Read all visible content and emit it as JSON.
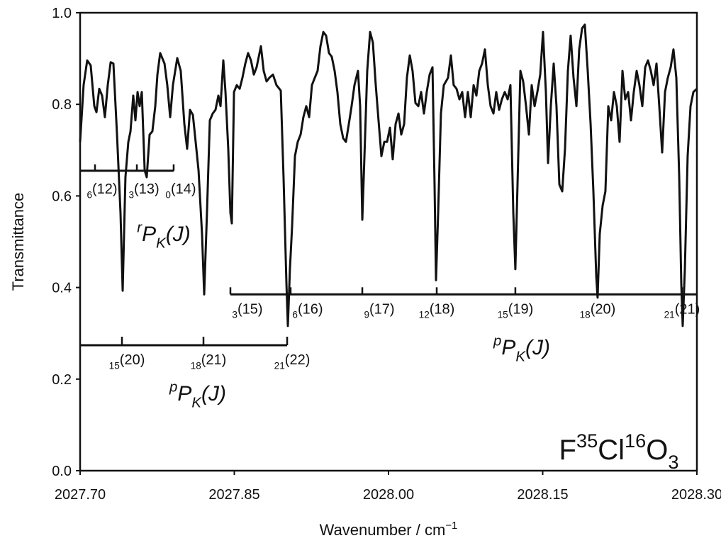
{
  "chart_data": {
    "type": "line",
    "color": "#111111",
    "xlabel": [
      {
        "text": "Wavenumber / cm"
      },
      {
        "text": "−1",
        "shift": "sup"
      }
    ],
    "ylabel": [
      {
        "text": "Transmittance"
      }
    ],
    "formula": [
      {
        "text": "F"
      },
      {
        "text": "35",
        "shift": "sup"
      },
      {
        "text": "Cl"
      },
      {
        "text": "16",
        "shift": "sup"
      },
      {
        "text": "O"
      },
      {
        "text": "3",
        "shift": "sub"
      }
    ],
    "xlim": [
      2027.7,
      2028.3
    ],
    "ylim": [
      0,
      1
    ],
    "xticks": [
      {
        "value": 2027.7,
        "label": "2027.70"
      },
      {
        "value": 2027.85,
        "label": "2027.85"
      },
      {
        "value": 2028.0,
        "label": "2028.00"
      },
      {
        "value": 2028.15,
        "label": "2028.15"
      },
      {
        "value": 2028.3,
        "label": "2028.30"
      }
    ],
    "yticks": [
      {
        "value": 0,
        "label": "0.0"
      },
      0.2,
      0.4,
      0.6,
      0.8,
      {
        "value": 1,
        "label": "1.0"
      }
    ],
    "x": [
      2027.7,
      2027.7034,
      2027.7069,
      2027.7103,
      2027.7138,
      2027.7159,
      2027.7186,
      2027.7214,
      2027.7241,
      2027.7269,
      2027.7297,
      2027.7324,
      2027.7359,
      2027.7393,
      2027.7414,
      2027.7441,
      2027.7469,
      2027.749,
      2027.7517,
      2027.7538,
      2027.7559,
      2027.7579,
      2027.76,
      2027.7628,
      2027.7648,
      2027.7676,
      2027.7703,
      2027.7731,
      2027.7752,
      2027.7779,
      2027.7821,
      2027.7848,
      2027.7876,
      2027.7903,
      2027.7945,
      2027.7979,
      2027.8014,
      2027.8041,
      2027.8069,
      2027.8097,
      2027.8124,
      2027.8152,
      2027.8186,
      2027.8207,
      2027.8234,
      2027.8262,
      2027.829,
      2027.8317,
      2027.8345,
      2027.8366,
      2027.8393,
      2027.8414,
      2027.8441,
      2027.8462,
      2027.8476,
      2027.8497,
      2027.8524,
      2027.8552,
      2027.8579,
      2027.8607,
      2027.8634,
      2027.8662,
      2027.869,
      2027.8717,
      2027.8759,
      2027.8786,
      2027.8814,
      2027.8841,
      2027.8876,
      2027.891,
      2027.8952,
      2027.8979,
      2027.9007,
      2027.9021,
      2027.9041,
      2027.9062,
      2027.909,
      2027.9117,
      2027.9145,
      2027.9172,
      2027.92,
      2027.9228,
      2027.9255,
      2027.9283,
      2027.931,
      2027.9338,
      2027.9366,
      2027.9393,
      2027.9421,
      2027.9448,
      2027.9476,
      2027.9503,
      2027.9531,
      2027.9559,
      2027.9586,
      2027.9614,
      2027.9641,
      2027.9669,
      2027.9703,
      2027.9724,
      2027.9745,
      2027.9766,
      2027.9793,
      2027.9821,
      2027.9848,
      2027.9876,
      2027.9903,
      2027.9931,
      2027.9959,
      2027.9986,
      2028.0014,
      2028.0041,
      2028.0069,
      2028.0097,
      2028.0124,
      2028.0152,
      2028.0179,
      2028.0207,
      2028.0234,
      2028.0262,
      2028.029,
      2028.0317,
      2028.0345,
      2028.0372,
      2028.04,
      2028.0428,
      2028.0448,
      2028.0462,
      2028.0483,
      2028.051,
      2028.0538,
      2028.0579,
      2028.0607,
      2028.0634,
      2028.0662,
      2028.069,
      2028.0717,
      2028.0745,
      2028.0772,
      2028.08,
      2028.0828,
      2028.0855,
      2028.0883,
      2028.091,
      2028.0938,
      2028.0966,
      2028.0993,
      2028.1021,
      2028.1048,
      2028.1076,
      2028.1103,
      2028.1131,
      2028.1159,
      2028.1186,
      2028.1214,
      2028.1234,
      2028.1255,
      2028.1283,
      2028.131,
      2028.1338,
      2028.1366,
      2028.1393,
      2028.1421,
      2028.1448,
      2028.1476,
      2028.1503,
      2028.1531,
      2028.1552,
      2028.1579,
      2028.1607,
      2028.1634,
      2028.1662,
      2028.169,
      2028.1717,
      2028.1745,
      2028.1772,
      2028.18,
      2028.1828,
      2028.1855,
      2028.1883,
      2028.191,
      2028.1938,
      2028.1966,
      2028.1993,
      2028.2021,
      2028.2034,
      2028.2055,
      2028.2083,
      2028.211,
      2028.2138,
      2028.2166,
      2028.2193,
      2028.2221,
      2028.2248,
      2028.2276,
      2028.2303,
      2028.2331,
      2028.2359,
      2028.2386,
      2028.2414,
      2028.2441,
      2028.2469,
      2028.2497,
      2028.2524,
      2028.2552,
      2028.2579,
      2028.2607,
      2028.2634,
      2028.2662,
      2028.269,
      2028.2717,
      2028.2745,
      2028.2772,
      2028.28,
      2028.2828,
      2028.2848,
      2028.2862,
      2028.2883,
      2028.291,
      2028.2938,
      2028.2966,
      2028.3
    ],
    "values": [
      0.718,
      0.842,
      0.896,
      0.885,
      0.796,
      0.783,
      0.834,
      0.819,
      0.772,
      0.842,
      0.892,
      0.889,
      0.734,
      0.563,
      0.393,
      0.641,
      0.718,
      0.741,
      0.819,
      0.765,
      0.827,
      0.796,
      0.827,
      0.656,
      0.641,
      0.734,
      0.741,
      0.796,
      0.865,
      0.912,
      0.889,
      0.842,
      0.772,
      0.842,
      0.901,
      0.873,
      0.757,
      0.703,
      0.788,
      0.777,
      0.718,
      0.656,
      0.517,
      0.385,
      0.563,
      0.765,
      0.78,
      0.788,
      0.819,
      0.796,
      0.896,
      0.827,
      0.703,
      0.563,
      0.54,
      0.827,
      0.842,
      0.834,
      0.858,
      0.889,
      0.912,
      0.896,
      0.865,
      0.881,
      0.927,
      0.873,
      0.85,
      0.858,
      0.865,
      0.842,
      0.83,
      0.641,
      0.409,
      0.316,
      0.44,
      0.533,
      0.687,
      0.718,
      0.734,
      0.772,
      0.796,
      0.772,
      0.842,
      0.858,
      0.873,
      0.927,
      0.958,
      0.95,
      0.912,
      0.904,
      0.873,
      0.827,
      0.757,
      0.726,
      0.718,
      0.757,
      0.796,
      0.842,
      0.873,
      0.796,
      0.548,
      0.687,
      0.873,
      0.958,
      0.935,
      0.842,
      0.765,
      0.687,
      0.718,
      0.718,
      0.749,
      0.68,
      0.757,
      0.78,
      0.734,
      0.757,
      0.858,
      0.907,
      0.873,
      0.803,
      0.796,
      0.827,
      0.78,
      0.827,
      0.865,
      0.881,
      0.625,
      0.416,
      0.563,
      0.78,
      0.842,
      0.858,
      0.907,
      0.842,
      0.834,
      0.811,
      0.827,
      0.772,
      0.827,
      0.772,
      0.842,
      0.819,
      0.873,
      0.889,
      0.92,
      0.842,
      0.796,
      0.78,
      0.827,
      0.788,
      0.811,
      0.827,
      0.811,
      0.842,
      0.563,
      0.44,
      0.625,
      0.873,
      0.85,
      0.796,
      0.734,
      0.842,
      0.796,
      0.827,
      0.865,
      0.958,
      0.827,
      0.672,
      0.796,
      0.889,
      0.796,
      0.625,
      0.61,
      0.703,
      0.873,
      0.95,
      0.858,
      0.796,
      0.92,
      0.966,
      0.974,
      0.873,
      0.757,
      0.61,
      0.424,
      0.378,
      0.517,
      0.579,
      0.61,
      0.796,
      0.765,
      0.827,
      0.796,
      0.718,
      0.873,
      0.811,
      0.827,
      0.765,
      0.827,
      0.873,
      0.842,
      0.796,
      0.881,
      0.896,
      0.873,
      0.842,
      0.889,
      0.796,
      0.695,
      0.827,
      0.858,
      0.881,
      0.92,
      0.858,
      0.641,
      0.409,
      0.316,
      0.44,
      0.687,
      0.796,
      0.827,
      0.834
    ],
    "assignments": [
      {
        "level": 0.655,
        "xrange": [
          2027.7,
          2027.791
        ],
        "label": [
          {
            "text": "r",
            "shift": "sup"
          },
          {
            "text": "P"
          },
          {
            "text": "K",
            "shift": "sub"
          },
          {
            "text": "(J)"
          }
        ],
        "ticks": [
          {
            "x": 2027.7145,
            "label": [
              {
                "text": "6",
                "shift": "sub"
              },
              {
                "text": "(12)"
              }
            ]
          },
          {
            "x": 2027.7552,
            "label": [
              {
                "text": "3",
                "shift": "sub"
              },
              {
                "text": "(13)"
              }
            ]
          },
          {
            "x": 2027.791,
            "label": [
              {
                "text": "0",
                "shift": "sub"
              },
              {
                "text": "(14)"
              }
            ]
          }
        ]
      },
      {
        "level": 0.274,
        "xrange": [
          2027.7,
          2027.9014
        ],
        "label": [
          {
            "text": "p",
            "shift": "sup"
          },
          {
            "text": "P"
          },
          {
            "text": "K",
            "shift": "sub"
          },
          {
            "text": "(J)"
          }
        ],
        "ticks": [
          {
            "x": 2027.7407,
            "label": [
              {
                "text": "15",
                "shift": "sub"
              },
              {
                "text": "(20)"
              }
            ]
          },
          {
            "x": 2027.82,
            "label": [
              {
                "text": "18",
                "shift": "sub"
              },
              {
                "text": "(21)"
              }
            ]
          },
          {
            "x": 2027.9014,
            "label": [
              {
                "text": "21",
                "shift": "sub"
              },
              {
                "text": "(22)"
              }
            ]
          }
        ]
      },
      {
        "level": 0.385,
        "xrange": [
          2027.8462,
          2028.3
        ],
        "label": [
          {
            "text": "p",
            "shift": "sup"
          },
          {
            "text": "P"
          },
          {
            "text": "K",
            "shift": "sub"
          },
          {
            "text": "(J)"
          }
        ],
        "ticks": [
          {
            "x": 2027.8462,
            "label": [
              {
                "text": "3",
                "shift": "sub"
              },
              {
                "text": "(15)"
              }
            ]
          },
          {
            "x": 2027.9048,
            "label": [
              {
                "text": "6",
                "shift": "sub"
              },
              {
                "text": "(16)"
              }
            ]
          },
          {
            "x": 2027.9745,
            "label": [
              {
                "text": "9",
                "shift": "sub"
              },
              {
                "text": "(17)"
              }
            ]
          },
          {
            "x": 2028.0469,
            "label": [
              {
                "text": "12",
                "shift": "sub"
              },
              {
                "text": "(18)"
              }
            ]
          },
          {
            "x": 2028.1234,
            "label": [
              {
                "text": "15",
                "shift": "sub"
              },
              {
                "text": "(19)"
              }
            ]
          },
          {
            "x": 2028.2034,
            "label": [
              {
                "text": "18",
                "shift": "sub"
              },
              {
                "text": "(20)"
              }
            ]
          },
          {
            "x": 2028.2855,
            "label": [
              {
                "text": "21",
                "shift": "sub"
              },
              {
                "text": "(21)"
              }
            ]
          }
        ]
      }
    ]
  }
}
